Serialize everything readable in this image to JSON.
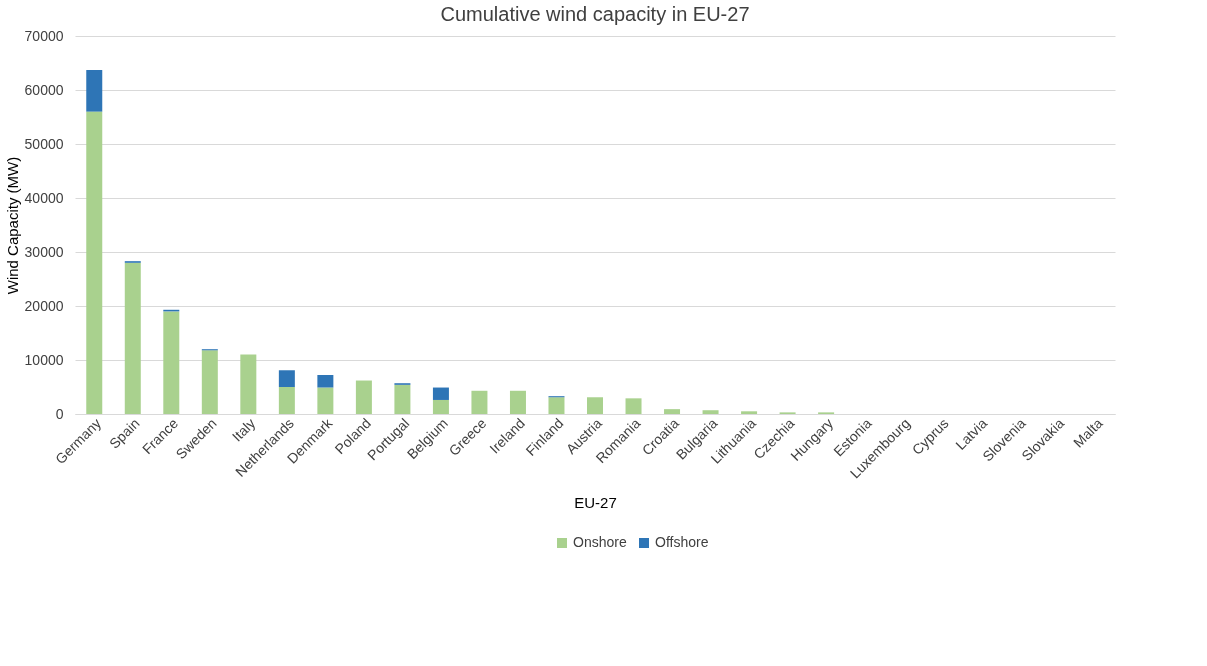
{
  "chart_data": {
    "type": "bar",
    "stacked": true,
    "title": "Cumulative wind capacity in EU-27",
    "xlabel": "EU-27",
    "ylabel": "Wind Capacity (MW)",
    "categories": [
      "Germany",
      "Spain",
      "France",
      "Sweden",
      "Italy",
      "Netherlands",
      "Denmark",
      "Poland",
      "Portugal",
      "Belgium",
      "Greece",
      "Ireland",
      "Finland",
      "Austria",
      "Romania",
      "Croatia",
      "Bulgaria",
      "Lithuania",
      "Czechia",
      "Hungary",
      "Estonia",
      "Luxembourg",
      "Cyprus",
      "Latvia",
      "Slovenia",
      "Slovakia",
      "Malta"
    ],
    "series": [
      {
        "name": "Onshore",
        "color": "#a9d18e",
        "values": [
          56000,
          28000,
          19000,
          11800,
          11000,
          5000,
          4900,
          6200,
          5400,
          2600,
          4300,
          4300,
          3100,
          3100,
          2900,
          900,
          700,
          500,
          300,
          300,
          0,
          0,
          0,
          0,
          0,
          0,
          0
        ]
      },
      {
        "name": "Offshore",
        "color": "#2e75b6",
        "values": [
          7700,
          300,
          300,
          200,
          0,
          3100,
          2300,
          0,
          300,
          2300,
          0,
          0,
          200,
          0,
          0,
          0,
          0,
          0,
          0,
          0,
          0,
          0,
          0,
          0,
          0,
          0,
          0
        ]
      }
    ],
    "ylim": [
      0,
      70000
    ],
    "yticks": [
      0,
      10000,
      20000,
      30000,
      40000,
      50000,
      60000,
      70000
    ],
    "grid": "y",
    "legend": "bottom"
  }
}
